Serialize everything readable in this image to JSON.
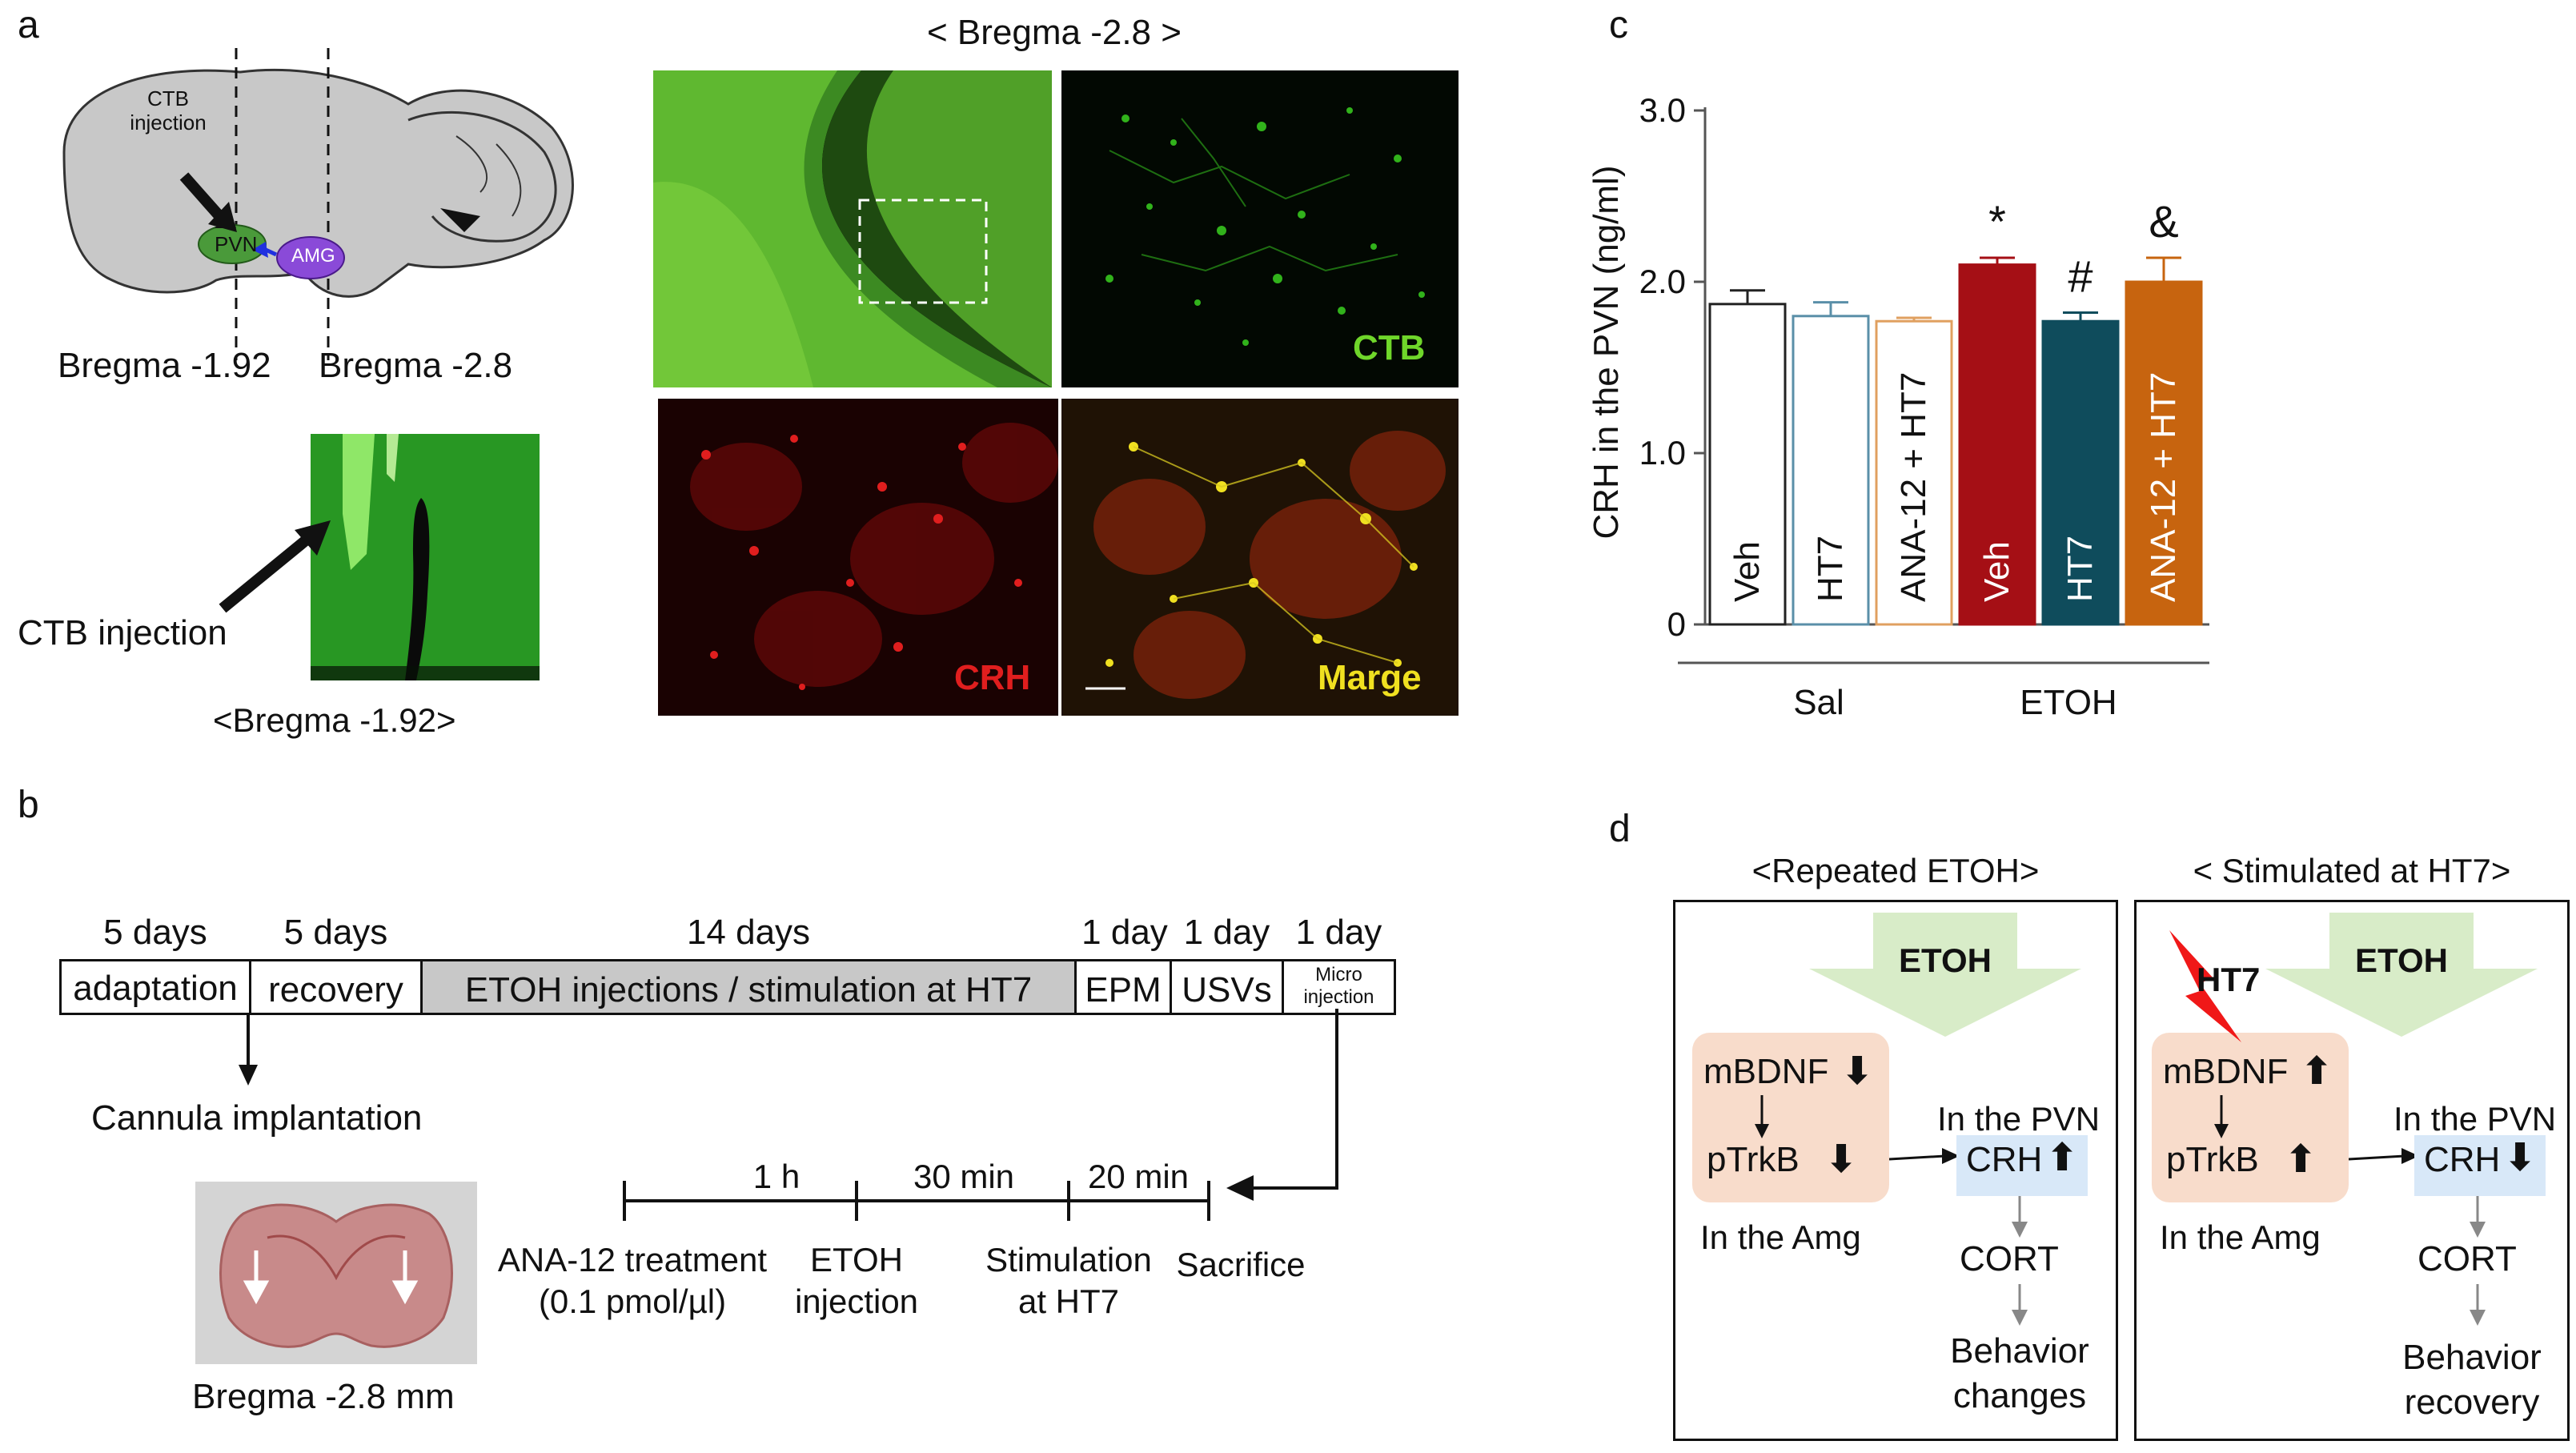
{
  "panels": {
    "a": "a",
    "b": "b",
    "c": "c",
    "d": "d"
  },
  "panel_a": {
    "brain_labels": {
      "ctb_injection_line1": "CTB",
      "ctb_injection_line2": "injection",
      "pvn": "PVN",
      "amg": "AMG"
    },
    "bregma_left": "Bregma -1.92",
    "bregma_right": "Bregma  -2.8",
    "inset_arrow_label": "CTB injection",
    "inset_caption": "<Bregma -1.92>",
    "micro_title": "< Bregma  -2.8 >",
    "micro_labels": {
      "ctb": "CTB",
      "crh": "CRH",
      "merge": "Marge"
    },
    "colors": {
      "green": "#6fd62a",
      "red": "#e01e1e",
      "yellow": "#f0e020"
    }
  },
  "panel_b": {
    "timeline": [
      {
        "duration": "5 days",
        "label": "adaptation"
      },
      {
        "duration": "5 days",
        "label": "recovery"
      },
      {
        "duration": "14 days",
        "label": "ETOH injections / stimulation at HT7"
      },
      {
        "duration": "1 day",
        "label": "EPM"
      },
      {
        "duration": "1 day",
        "label": "USVs"
      },
      {
        "duration": "1 day",
        "label_line1": "Micro",
        "label_line2": "injection"
      }
    ],
    "cannula": "Cannula implantation",
    "brain_caption": "Bregma -2.8 mm",
    "sub_timeline": {
      "intervals": [
        "1 h",
        "30 min",
        "20 min"
      ],
      "events": [
        {
          "line1": "ANA-12 treatment",
          "line2": "(0.1 pmol/µl)"
        },
        {
          "line1": "ETOH",
          "line2": "injection"
        },
        {
          "line1": "Stimulation",
          "line2": "at HT7"
        },
        {
          "line1": "Sacrifice",
          "line2": ""
        }
      ]
    }
  },
  "chart_data": {
    "type": "bar",
    "ylabel": "CRH in the PVN  (ng/ml)",
    "ylim": [
      0,
      3.0
    ],
    "yticks": [
      "0",
      "1.0",
      "2.0",
      "3.0"
    ],
    "categories": [
      "Veh",
      "HT7",
      "ANA-12 + HT7",
      "Veh",
      "HT7",
      "ANA-12 + HT7"
    ],
    "values": [
      1.87,
      1.8,
      1.77,
      2.1,
      1.77,
      2.0
    ],
    "errors": [
      0.08,
      0.08,
      0.02,
      0.04,
      0.05,
      0.14
    ],
    "significance": [
      "",
      "",
      "",
      "*",
      "#",
      "&"
    ],
    "groups": [
      {
        "name": "Sal",
        "span": [
          0,
          2
        ]
      },
      {
        "name": "ETOH",
        "span": [
          3,
          5
        ]
      }
    ],
    "bar_fill": [
      "#ffffff",
      "#ffffff",
      "#ffffff",
      "#a50f15",
      "#0f4c5c",
      "#c7640f"
    ],
    "bar_edge": [
      "#222222",
      "#5a8fa8",
      "#e0a060",
      "#a50f15",
      "#0f4c5c",
      "#c7640f"
    ]
  },
  "panel_d": {
    "left": {
      "title": "<Repeated ETOH>",
      "etoh": "ETOH",
      "mbdnf": "mBDNF",
      "ptrkb": "pTrkB",
      "in_amg": "In the Amg",
      "in_pvn": "In the PVN",
      "crh": "CRH",
      "cort": "CORT",
      "outcome_line1": "Behavior",
      "outcome_line2": "changes",
      "mbdnf_arrow": "down",
      "ptrkb_arrow": "down",
      "crh_arrow": "up"
    },
    "right": {
      "title": "< Stimulated at HT7>",
      "etoh": "ETOH",
      "ht7": "HT7",
      "mbdnf": "mBDNF",
      "ptrkb": "pTrkB",
      "in_amg": "In the Amg",
      "in_pvn": "In the PVN",
      "crh": "CRH",
      "cort": "CORT",
      "outcome_line1": "Behavior",
      "outcome_line2": "recovery",
      "mbdnf_arrow": "up",
      "ptrkb_arrow": "up",
      "crh_arrow": "down"
    }
  }
}
